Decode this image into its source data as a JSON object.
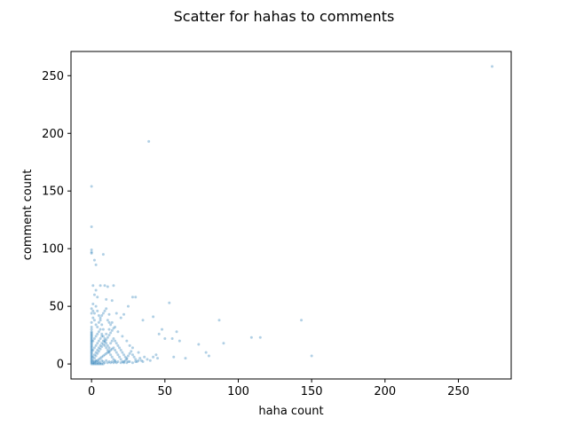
{
  "chart_data": {
    "type": "scatter",
    "title": "Scatter for hahas to comments",
    "xlabel": "haha count",
    "ylabel": "comment count",
    "xlim": [
      -14,
      286
    ],
    "ylim": [
      -13,
      271
    ],
    "xticks": [
      0,
      50,
      100,
      150,
      200,
      250
    ],
    "yticks": [
      0,
      50,
      100,
      150,
      200,
      250
    ],
    "grid": false,
    "marker_color": "#1f77b4",
    "marker_alpha": 0.35,
    "series": [
      {
        "name": "",
        "points": [
          [
            273,
            258
          ],
          [
            39,
            193
          ],
          [
            0,
            154
          ],
          [
            0,
            119
          ],
          [
            0,
            99
          ],
          [
            0,
            97
          ],
          [
            0,
            96
          ],
          [
            8,
            95
          ],
          [
            2,
            90
          ],
          [
            3,
            86
          ],
          [
            6,
            68
          ],
          [
            9,
            68
          ],
          [
            11,
            67
          ],
          [
            15,
            68
          ],
          [
            1,
            68
          ],
          [
            28,
            58
          ],
          [
            30,
            58
          ],
          [
            4,
            58
          ],
          [
            10,
            56
          ],
          [
            14,
            55
          ],
          [
            25,
            50
          ],
          [
            53,
            53
          ],
          [
            22,
            43
          ],
          [
            42,
            41
          ],
          [
            35,
            38
          ],
          [
            87,
            38
          ],
          [
            143,
            38
          ],
          [
            12,
            43
          ],
          [
            17,
            44
          ],
          [
            20,
            40
          ],
          [
            48,
            30
          ],
          [
            58,
            28
          ],
          [
            46,
            26
          ],
          [
            50,
            22
          ],
          [
            55,
            22
          ],
          [
            60,
            20
          ],
          [
            90,
            18
          ],
          [
            109,
            23
          ],
          [
            115,
            23
          ],
          [
            73,
            17
          ],
          [
            78,
            10
          ],
          [
            80,
            7
          ],
          [
            64,
            5
          ],
          [
            56,
            6
          ],
          [
            45,
            5
          ],
          [
            150,
            7
          ],
          [
            36,
            6
          ],
          [
            32,
            10
          ],
          [
            28,
            14
          ],
          [
            26,
            16
          ],
          [
            24,
            20
          ],
          [
            21,
            24
          ],
          [
            18,
            28
          ],
          [
            16,
            32
          ],
          [
            14,
            36
          ],
          [
            12,
            30
          ],
          [
            10,
            26
          ],
          [
            9,
            22
          ],
          [
            8,
            30
          ],
          [
            7,
            34
          ],
          [
            6,
            38
          ],
          [
            5,
            42
          ],
          [
            4,
            46
          ],
          [
            3,
            50
          ],
          [
            2,
            44
          ],
          [
            1,
            40
          ],
          [
            0,
            36
          ],
          [
            0,
            32
          ],
          [
            0,
            30
          ],
          [
            0,
            28
          ],
          [
            0,
            26
          ],
          [
            0,
            24
          ],
          [
            0,
            22
          ],
          [
            0,
            20
          ],
          [
            0,
            18
          ],
          [
            0,
            16
          ],
          [
            0,
            14
          ],
          [
            0,
            12
          ],
          [
            0,
            10
          ],
          [
            0,
            8
          ],
          [
            0,
            6
          ],
          [
            0,
            4
          ],
          [
            0,
            2
          ],
          [
            0,
            1
          ],
          [
            0,
            0
          ],
          [
            1,
            0
          ],
          [
            2,
            1
          ],
          [
            3,
            2
          ],
          [
            4,
            3
          ],
          [
            5,
            4
          ],
          [
            6,
            5
          ],
          [
            7,
            6
          ],
          [
            8,
            7
          ],
          [
            9,
            8
          ],
          [
            10,
            9
          ],
          [
            11,
            10
          ],
          [
            12,
            11
          ],
          [
            13,
            12
          ],
          [
            14,
            13
          ],
          [
            15,
            14
          ],
          [
            16,
            12
          ],
          [
            17,
            10
          ],
          [
            18,
            8
          ],
          [
            19,
            6
          ],
          [
            20,
            4
          ],
          [
            21,
            2
          ],
          [
            22,
            1
          ],
          [
            23,
            3
          ],
          [
            24,
            5
          ],
          [
            25,
            7
          ],
          [
            26,
            9
          ],
          [
            27,
            11
          ],
          [
            28,
            8
          ],
          [
            29,
            6
          ],
          [
            30,
            4
          ],
          [
            31,
            2
          ],
          [
            32,
            3
          ],
          [
            33,
            5
          ],
          [
            34,
            3
          ],
          [
            35,
            2
          ],
          [
            38,
            4
          ],
          [
            40,
            3
          ],
          [
            42,
            6
          ],
          [
            44,
            8
          ],
          [
            1,
            20
          ],
          [
            2,
            22
          ],
          [
            3,
            24
          ],
          [
            4,
            26
          ],
          [
            5,
            28
          ],
          [
            6,
            30
          ],
          [
            7,
            26
          ],
          [
            8,
            24
          ],
          [
            9,
            20
          ],
          [
            10,
            18
          ],
          [
            11,
            16
          ],
          [
            12,
            14
          ],
          [
            13,
            18
          ],
          [
            14,
            20
          ],
          [
            15,
            22
          ],
          [
            16,
            20
          ],
          [
            17,
            18
          ],
          [
            18,
            16
          ],
          [
            19,
            14
          ],
          [
            20,
            12
          ],
          [
            21,
            10
          ],
          [
            22,
            8
          ],
          [
            23,
            6
          ],
          [
            24,
            4
          ],
          [
            25,
            2
          ],
          [
            1,
            12
          ],
          [
            2,
            14
          ],
          [
            3,
            16
          ],
          [
            4,
            18
          ],
          [
            5,
            20
          ],
          [
            6,
            22
          ],
          [
            7,
            24
          ],
          [
            1,
            6
          ],
          [
            2,
            8
          ],
          [
            3,
            10
          ],
          [
            4,
            12
          ],
          [
            5,
            14
          ],
          [
            6,
            16
          ],
          [
            7,
            18
          ],
          [
            8,
            20
          ],
          [
            9,
            16
          ],
          [
            10,
            14
          ],
          [
            11,
            12
          ],
          [
            12,
            10
          ],
          [
            13,
            8
          ],
          [
            14,
            6
          ],
          [
            15,
            4
          ],
          [
            16,
            2
          ],
          [
            17,
            1
          ],
          [
            1,
            3
          ],
          [
            2,
            5
          ],
          [
            3,
            7
          ],
          [
            4,
            9
          ],
          [
            5,
            11
          ],
          [
            6,
            13
          ],
          [
            7,
            15
          ],
          [
            8,
            17
          ],
          [
            9,
            19
          ],
          [
            10,
            21
          ],
          [
            11,
            23
          ],
          [
            12,
            25
          ],
          [
            13,
            27
          ],
          [
            14,
            29
          ],
          [
            15,
            31
          ],
          [
            0,
            48
          ],
          [
            1,
            52
          ],
          [
            2,
            60
          ],
          [
            3,
            64
          ],
          [
            0,
            44
          ],
          [
            1,
            46
          ],
          [
            2,
            38
          ],
          [
            3,
            34
          ],
          [
            4,
            32
          ],
          [
            5,
            36
          ],
          [
            6,
            40
          ],
          [
            7,
            42
          ],
          [
            8,
            44
          ],
          [
            9,
            46
          ],
          [
            10,
            48
          ],
          [
            11,
            38
          ],
          [
            12,
            36
          ],
          [
            13,
            34
          ],
          [
            2,
            2
          ],
          [
            3,
            3
          ],
          [
            4,
            1
          ],
          [
            5,
            2
          ],
          [
            6,
            1
          ],
          [
            7,
            3
          ],
          [
            8,
            2
          ],
          [
            9,
            1
          ],
          [
            10,
            3
          ],
          [
            11,
            1
          ],
          [
            12,
            2
          ],
          [
            13,
            1
          ],
          [
            14,
            2
          ],
          [
            15,
            1
          ],
          [
            16,
            3
          ],
          [
            18,
            2
          ],
          [
            20,
            1
          ],
          [
            22,
            2
          ],
          [
            24,
            1
          ],
          [
            26,
            2
          ],
          [
            28,
            1
          ],
          [
            30,
            2
          ],
          [
            1,
            1
          ],
          [
            2,
            0
          ],
          [
            3,
            0
          ],
          [
            4,
            0
          ],
          [
            5,
            0
          ],
          [
            6,
            0
          ],
          [
            7,
            0
          ],
          [
            8,
            0
          ],
          [
            0,
            3
          ],
          [
            0,
            5
          ],
          [
            0,
            7
          ],
          [
            0,
            9
          ],
          [
            0,
            11
          ],
          [
            0,
            13
          ],
          [
            0,
            15
          ],
          [
            0,
            17
          ],
          [
            0,
            19
          ],
          [
            0,
            21
          ],
          [
            0,
            23
          ],
          [
            0,
            25
          ],
          [
            0,
            27
          ]
        ]
      }
    ]
  }
}
